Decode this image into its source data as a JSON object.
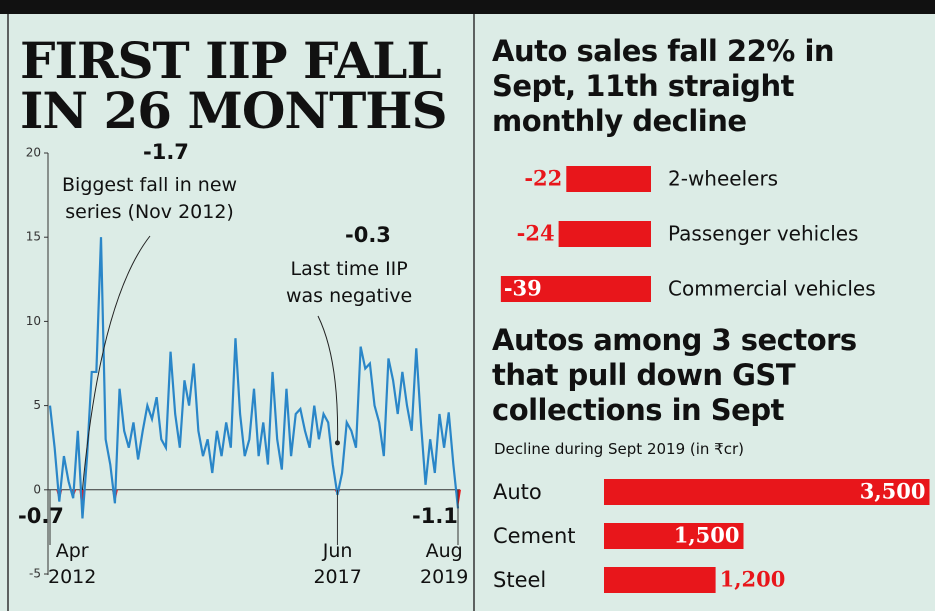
{
  "chart_data": [
    {
      "type": "line",
      "title": "FIRST IIP FALL\nIN 26 MONTHS",
      "categories": [
        "Apr\n2012",
        null,
        null,
        null,
        null,
        null,
        null,
        null,
        null,
        null,
        null,
        null,
        null,
        null,
        null,
        null,
        null,
        null,
        null,
        null,
        null,
        null,
        null,
        null,
        null,
        null,
        null,
        null,
        null,
        null,
        null,
        null,
        null,
        null,
        null,
        null,
        null,
        null,
        null,
        null,
        null,
        null,
        null,
        null,
        null,
        null,
        null,
        null,
        null,
        null,
        null,
        null,
        null,
        null,
        null,
        null,
        null,
        null,
        null,
        null,
        null,
        null,
        "Jun\n2017",
        null,
        null,
        null,
        null,
        null,
        null,
        null,
        null,
        null,
        null,
        null,
        null,
        null,
        null,
        null,
        null,
        null,
        null,
        null,
        null,
        null,
        null,
        null,
        null,
        null,
        "Aug\n2019"
      ],
      "values": [
        5.0,
        2.5,
        -0.7,
        2.0,
        0.5,
        -0.5,
        3.5,
        -1.7,
        2.0,
        7.0,
        7.0,
        15.0,
        3.0,
        1.5,
        -0.8,
        6.0,
        3.5,
        2.5,
        4.0,
        1.8,
        3.5,
        5.0,
        4.2,
        5.5,
        3.0,
        2.5,
        8.2,
        4.5,
        2.5,
        6.5,
        5.0,
        7.5,
        3.5,
        2.0,
        3.0,
        1.0,
        3.5,
        2.0,
        4.0,
        2.5,
        9.0,
        4.5,
        2.0,
        3.0,
        6.0,
        2.0,
        4.0,
        1.5,
        7.0,
        3.0,
        1.2,
        6.0,
        2.0,
        4.5,
        4.8,
        3.5,
        2.5,
        5.0,
        3.0,
        4.5,
        4.0,
        1.5,
        -0.3,
        1.0,
        4.0,
        3.5,
        2.5,
        8.5,
        7.2,
        7.5,
        5.0,
        4.0,
        2.0,
        7.8,
        6.5,
        4.5,
        7.0,
        5.0,
        3.5,
        8.4,
        4.0,
        0.3,
        3.0,
        1.0,
        4.5,
        2.5,
        4.6,
        1.5,
        -1.1
      ],
      "color": "#2a86c8",
      "negative_color": "#e8161b",
      "ylim": [
        -5,
        20
      ],
      "yticks": [
        -5,
        0,
        5,
        10,
        15,
        20
      ],
      "annotations": [
        {
          "label": "-1.7",
          "index": 7
        },
        {
          "label": "Biggest fall in new\nseries (Nov 2012)",
          "index": 7
        },
        {
          "label": "-0.3",
          "index": 62
        },
        {
          "label": "Last time IIP\nwas negative",
          "index": 62
        },
        {
          "label": "-0.7",
          "index": 2
        },
        {
          "label": "-1.1",
          "index": 88
        }
      ]
    },
    {
      "type": "hbar",
      "title": "Auto sales fall 22% in\nSept, 11th straight\nmonthly decline",
      "categories": [
        "2-wheelers",
        "Passenger vehicles",
        "Commercial vehicles"
      ],
      "values": [
        -22,
        -24,
        -39
      ],
      "color": "#e8161b"
    },
    {
      "type": "hbar",
      "title": "Autos among 3 sectors\nthat pull down GST\ncollections in Sept",
      "subtitle": "Decline during Sept 2019 (in ₹cr)",
      "categories": [
        "Auto",
        "Cement",
        "Steel"
      ],
      "values": [
        3500,
        1500,
        1200
      ],
      "value_labels": [
        "3,500",
        "1,500",
        "1,200"
      ],
      "color": "#e8161b"
    }
  ]
}
